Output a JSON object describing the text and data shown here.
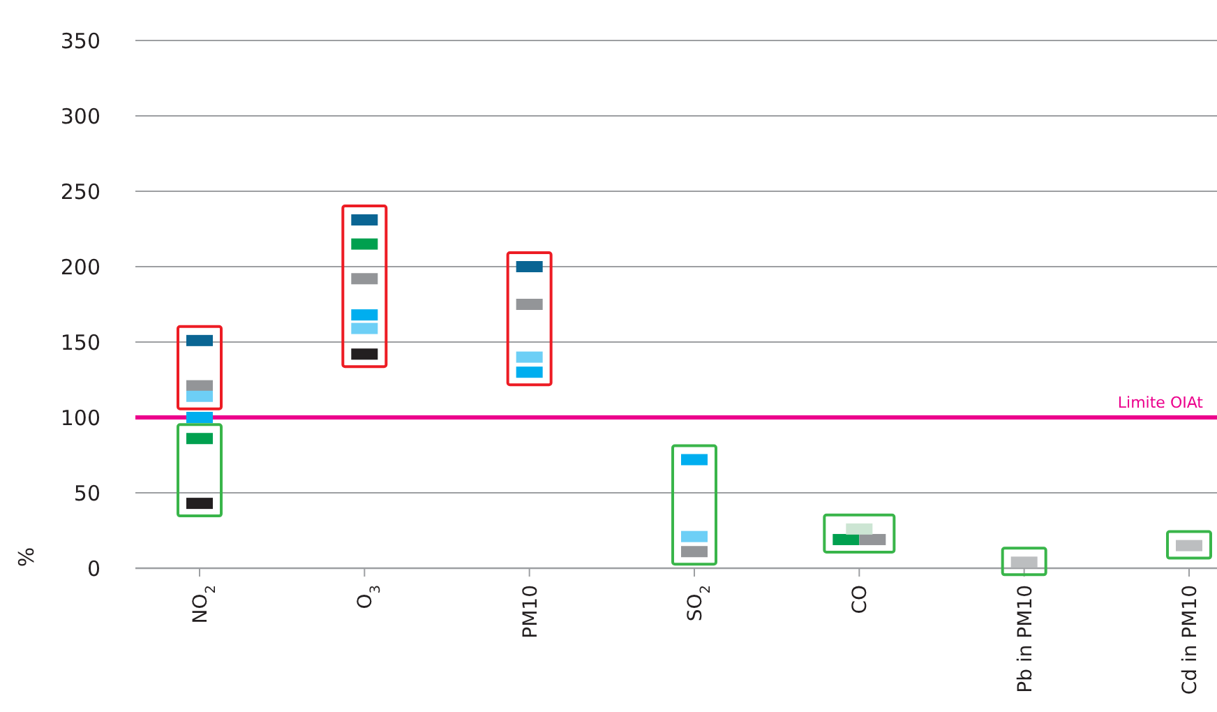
{
  "chart_data": {
    "type": "scatter",
    "marker": "square",
    "ylabel": "%",
    "categories": [
      "NO$_{2}$",
      "O$_{3}$",
      "PM10",
      "SO$_{2}$",
      "CO",
      "Pb in PM10",
      "Cd in PM10"
    ],
    "series": [
      {
        "color": "#0a6593",
        "values": [
          151,
          231,
          200,
          null,
          null,
          null,
          null
        ]
      },
      {
        "color": "#00a04f",
        "values": [
          86,
          215,
          null,
          null,
          19,
          null,
          null
        ]
      },
      {
        "color": "#939598",
        "values": [
          121,
          192,
          175,
          11,
          19,
          null,
          null
        ]
      },
      {
        "color": "#6dcff6",
        "values": [
          114,
          159,
          140,
          21,
          null,
          null,
          null
        ]
      },
      {
        "color": "#00aeef",
        "values": [
          100,
          168,
          130,
          72,
          null,
          null,
          null
        ]
      },
      {
        "color": "#231f20",
        "values": [
          43,
          142,
          null,
          null,
          null,
          null,
          null
        ]
      },
      {
        "color": "#cce5d3",
        "values": [
          null,
          null,
          null,
          null,
          26,
          null,
          null
        ]
      },
      {
        "color": "#bcbec0",
        "values": [
          null,
          null,
          null,
          null,
          null,
          4,
          15
        ]
      }
    ],
    "ylim": [
      0,
      350
    ],
    "yticks": [
      0,
      50,
      100,
      150,
      200,
      250,
      300,
      350
    ],
    "grid": "y",
    "ref_lines": [
      {
        "axis": "y",
        "value": 100,
        "label": "Limite OIAt",
        "color": "#ec008c"
      }
    ]
  }
}
